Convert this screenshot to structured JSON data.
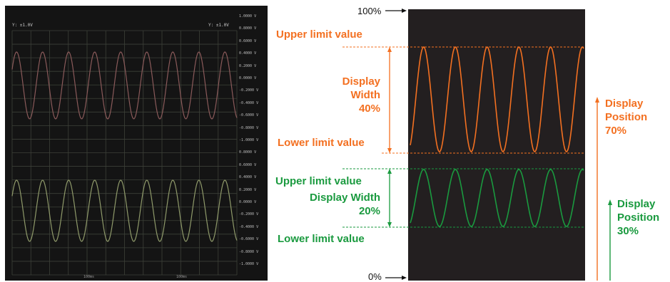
{
  "colors": {
    "upper_trace": "#f37021",
    "lower_trace": "#1a9a3f",
    "panel": "#231f20"
  },
  "screenshot": {
    "top_left_label": "Y: ±1.0V",
    "top_right_label": "Y: ±1.0V",
    "scale_ticks": [
      "1.0000 V",
      "0.8000 V",
      "0.6000 V",
      "0.4000 V",
      "0.2000 V",
      "0.0000 V",
      "-0.2000 V",
      "-0.4000 V",
      "-0.6000 V",
      "-0.8000 V",
      "-1.0000 V",
      "0.8000 V",
      "0.6000 V",
      "0.4000 V",
      "0.2000 V",
      "0.0000 V",
      "-0.2000 V",
      "-0.4000 V",
      "-0.6000 V",
      "-0.8000 V",
      "-1.0000 V"
    ],
    "bottom_labels": [
      "100ms",
      "100ms"
    ]
  },
  "diagram": {
    "top_percent": "100%",
    "bottom_percent": "0%",
    "orange": {
      "upper_limit": "Upper limit value",
      "display_width_line1": "Display",
      "display_width_line2": "Width",
      "display_width_value": "40%",
      "lower_limit": "Lower limit value",
      "position_line1": "Display",
      "position_line2": "Position",
      "position_value": "70%"
    },
    "green": {
      "upper_limit": "Upper limit value",
      "display_width": "Display Width",
      "display_width_value": "20%",
      "lower_limit": "Lower limit value",
      "position_line1": "Display",
      "position_line2": "Position",
      "position_value": "30%"
    }
  }
}
